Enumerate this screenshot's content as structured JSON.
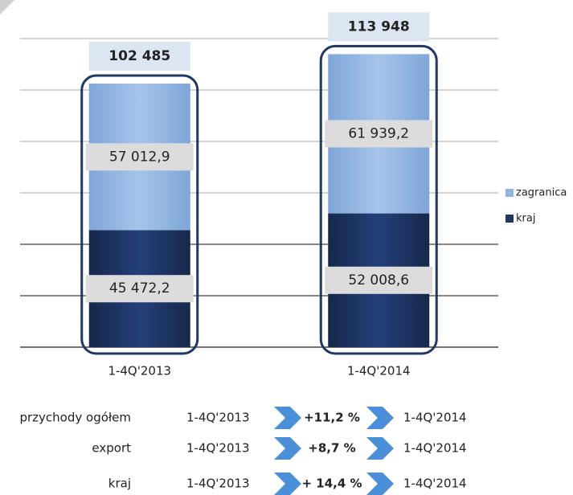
{
  "chart_data": {
    "type": "stacked_bar",
    "categories": [
      "1-4Q'2013",
      "1-4Q'2014"
    ],
    "series": [
      {
        "name": "kraj",
        "color": "#1f3864",
        "values": [
          45472.2,
          52008.6
        ],
        "value_labels": [
          "45 472,2",
          "52 008,6"
        ]
      },
      {
        "name": "zagranica",
        "color": "#8eb4e3",
        "values": [
          57012.9,
          61939.2
        ],
        "value_labels": [
          "57 012,9",
          "61 939,2"
        ]
      }
    ],
    "totals": {
      "values": [
        102485,
        113948
      ],
      "value_labels": [
        "102 485",
        "113 948"
      ]
    },
    "ylim": [
      0,
      120000
    ],
    "yticks": [
      0,
      20000,
      40000,
      60000,
      80000,
      100000,
      120000
    ],
    "grid": true,
    "legend": "right"
  },
  "comparison": [
    {
      "label": "przychody ogółem",
      "from": "1-4Q'2013",
      "change": "+11,2 %",
      "to": "1-4Q'2014"
    },
    {
      "label": "export",
      "from": "1-4Q'2013",
      "change": "+8,7 %",
      "to": "1-4Q'2014"
    },
    {
      "label": "kraj",
      "from": "1-4Q'2013",
      "change": "+ 14,4 %",
      "to": "1-4Q'2014"
    }
  ]
}
